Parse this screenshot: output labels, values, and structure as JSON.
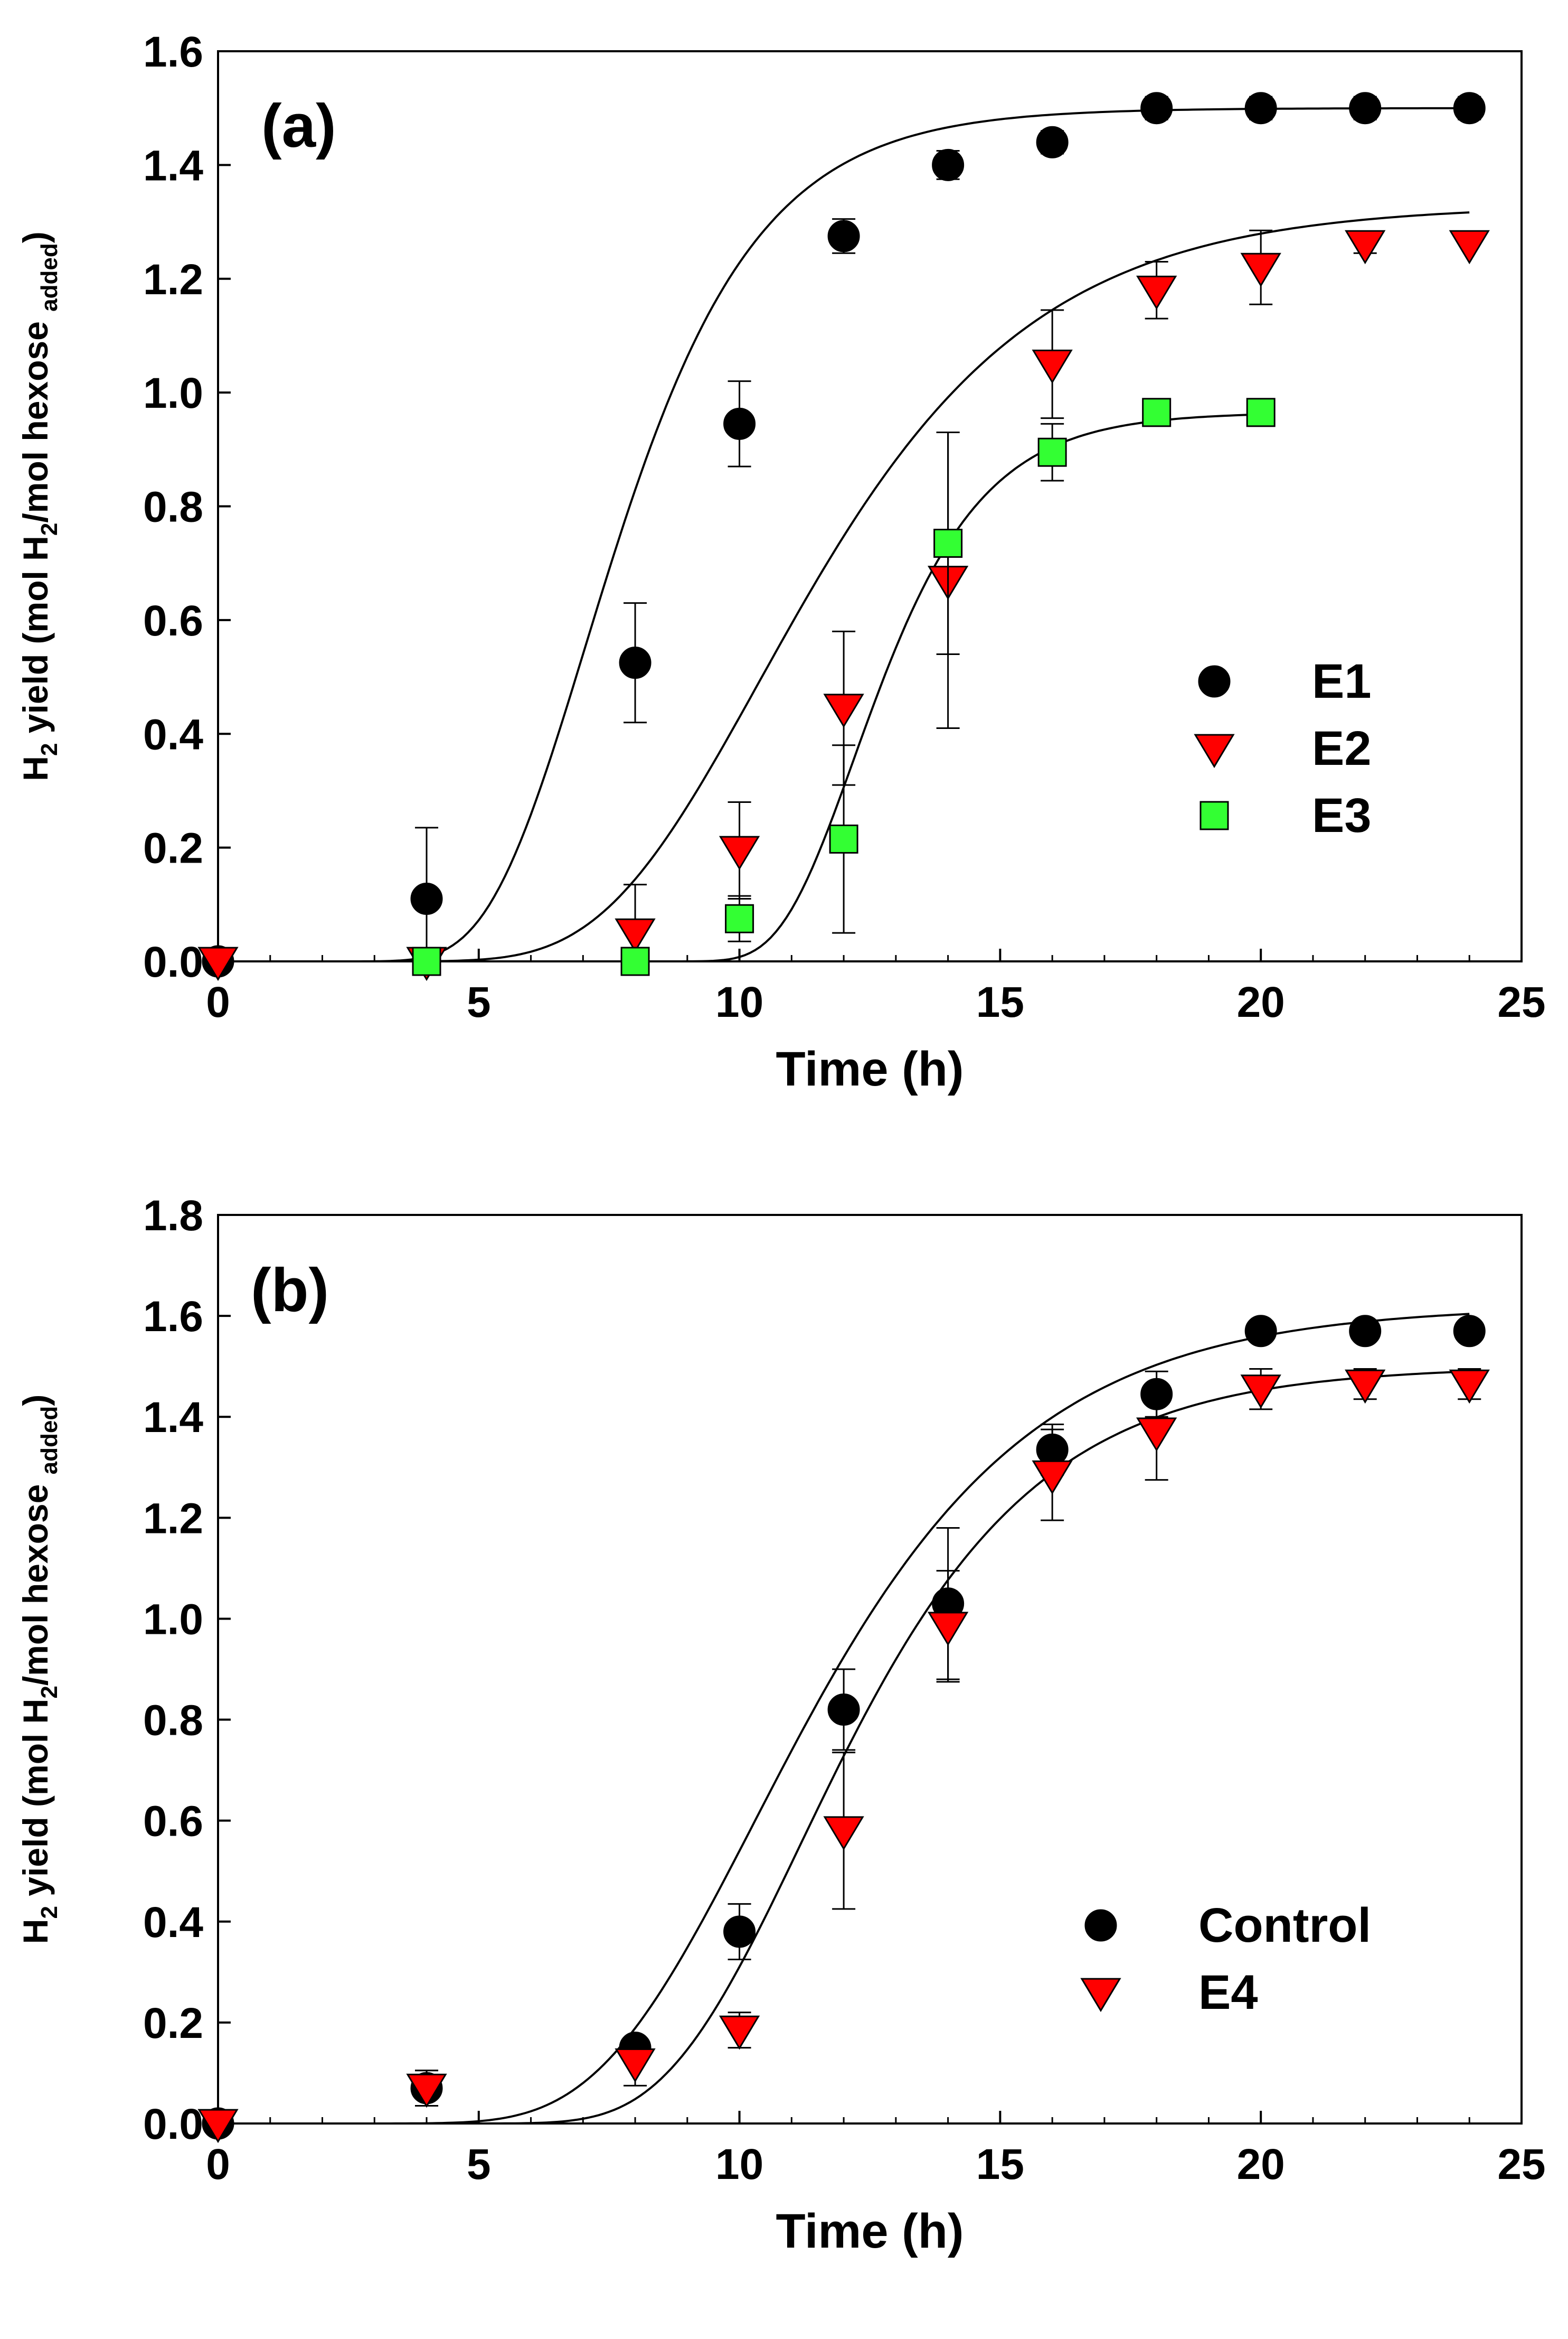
{
  "chart_data": [
    {
      "type": "scatter",
      "panel_label": "(a)",
      "xlabel": "Time (h)",
      "ylabel_parts": [
        "H",
        "2",
        " yield (mol H",
        "2",
        "/mol hexose ",
        "added",
        ")"
      ],
      "xlim": [
        0,
        25
      ],
      "ylim": [
        0,
        1.6
      ],
      "xticks": [
        0,
        5,
        10,
        15,
        20,
        25
      ],
      "xtick_labels": [
        "0",
        "5",
        "10",
        "15",
        "20",
        "25"
      ],
      "yticks": [
        0,
        0.2,
        0.4,
        0.6,
        0.8,
        1.0,
        1.2,
        1.4,
        1.6
      ],
      "ytick_labels": [
        "0.0",
        "0.2",
        "0.4",
        "0.6",
        "0.8",
        "1.0",
        "1.2",
        "1.4",
        "1.6"
      ],
      "legend_position": "center-right",
      "series": [
        {
          "name": "E1",
          "marker": "circle",
          "color": "#000000",
          "x": [
            0,
            4,
            8,
            10,
            12,
            14,
            16,
            18,
            20,
            22,
            24
          ],
          "y": [
            0.0,
            0.11,
            0.525,
            0.945,
            1.275,
            1.4,
            1.44,
            1.5,
            1.5,
            1.5,
            1.5
          ],
          "err": [
            0.0,
            0.125,
            0.105,
            0.075,
            0.03,
            0.025,
            0.02,
            0.02,
            0.02,
            0.02,
            0.02
          ],
          "fit": {
            "p": 1.5,
            "rm": 0.3,
            "lambda": 5.2,
            "xmax": 24
          }
        },
        {
          "name": "E2",
          "marker": "triangle-down",
          "color": "#ff0000",
          "x": [
            0,
            4,
            8,
            10,
            12,
            14,
            16,
            18,
            20,
            22,
            24
          ],
          "y": [
            0.0,
            0.0,
            0.05,
            0.195,
            0.445,
            0.67,
            1.05,
            1.18,
            1.22,
            1.26,
            1.26
          ],
          "err": [
            0.0,
            0.0,
            0.085,
            0.085,
            0.135,
            0.26,
            0.095,
            0.05,
            0.065,
            0.015,
            0.0
          ],
          "fit": {
            "p": 1.33,
            "rm": 0.165,
            "lambda": 7.4,
            "xmax": 24
          }
        },
        {
          "name": "E3",
          "marker": "square",
          "color": "#33ff33",
          "x": [
            4,
            8,
            10,
            12,
            14,
            16,
            18,
            20
          ],
          "y": [
            0.0,
            0.0,
            0.075,
            0.215,
            0.735,
            0.895,
            0.965,
            0.965
          ],
          "err": [
            0.0,
            0.0,
            0.04,
            0.165,
            0.195,
            0.05,
            0.0,
            0.0
          ],
          "fit": {
            "p": 0.965,
            "rm": 0.255,
            "lambda": 10.8,
            "xmax": 20
          }
        }
      ]
    },
    {
      "type": "scatter",
      "panel_label": "(b)",
      "xlabel": "Time (h)",
      "ylabel_parts": [
        "H",
        "2",
        " yield (mol H",
        "2",
        "/mol hexose ",
        "added",
        ")"
      ],
      "xlim": [
        0,
        25
      ],
      "ylim": [
        0,
        1.8
      ],
      "xticks": [
        0,
        5,
        10,
        15,
        20,
        25
      ],
      "xtick_labels": [
        "0",
        "5",
        "10",
        "15",
        "20",
        "25"
      ],
      "yticks": [
        0,
        0.2,
        0.4,
        0.6,
        0.8,
        1.0,
        1.2,
        1.4,
        1.6,
        1.8
      ],
      "ytick_labels": [
        "0.0",
        "0.2",
        "0.4",
        "0.6",
        "0.8",
        "1.0",
        "1.2",
        "1.4",
        "1.6",
        "1.8"
      ],
      "legend_position": "bottom-right",
      "series": [
        {
          "name": "Control",
          "marker": "circle",
          "color": "#000000",
          "x": [
            0,
            4,
            8,
            10,
            12,
            14,
            16,
            18,
            20,
            22,
            24
          ],
          "y": [
            0.0,
            0.07,
            0.15,
            0.38,
            0.82,
            1.03,
            1.335,
            1.445,
            1.57,
            1.57,
            1.57
          ],
          "err": [
            0.0,
            0.035,
            0.02,
            0.055,
            0.08,
            0.15,
            0.05,
            0.045,
            0.02,
            0.02,
            0.02
          ],
          "fit": {
            "p": 1.62,
            "rm": 0.2,
            "lambda": 7.3,
            "xmax": 24
          }
        },
        {
          "name": "E4",
          "marker": "triangle-down",
          "color": "#ff0000",
          "x": [
            0,
            4,
            8,
            10,
            12,
            14,
            16,
            18,
            20,
            22,
            24
          ],
          "y": [
            0.0,
            0.07,
            0.12,
            0.185,
            0.58,
            0.985,
            1.285,
            1.37,
            1.455,
            1.465,
            1.465
          ],
          "err": [
            0.0,
            0.035,
            0.045,
            0.035,
            0.155,
            0.11,
            0.09,
            0.095,
            0.04,
            0.03,
            0.03
          ],
          "fit": {
            "p": 1.5,
            "rm": 0.215,
            "lambda": 8.6,
            "xmax": 24
          }
        }
      ]
    }
  ]
}
